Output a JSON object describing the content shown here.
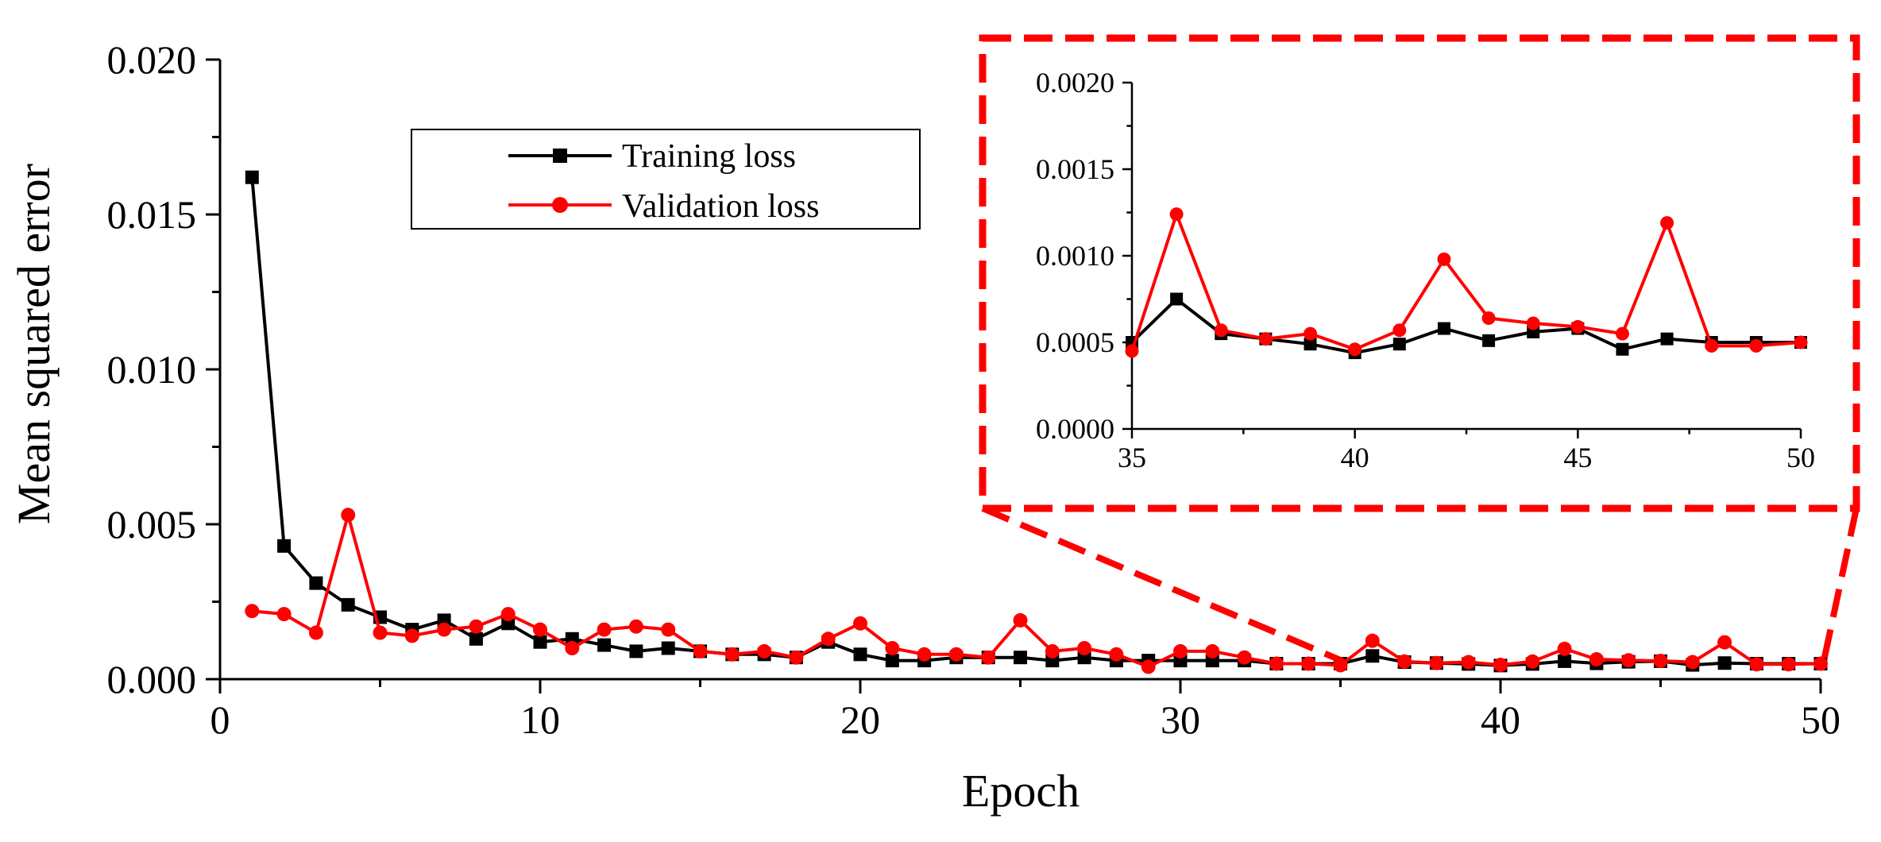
{
  "colors": {
    "training": "#000000",
    "validation": "#ff0000",
    "axis": "#000000",
    "zoom_box": "#ff0000"
  },
  "chart_data": [
    {
      "id": "main",
      "type": "line",
      "title": "",
      "xlabel": "Epoch",
      "ylabel": "Mean squared error",
      "xlim": [
        0,
        50
      ],
      "ylim": [
        0.0,
        0.02
      ],
      "xticks": [
        0,
        10,
        20,
        30,
        40,
        50
      ],
      "xtick_labels": [
        "0",
        "10",
        "20",
        "30",
        "40",
        "50"
      ],
      "yticks": [
        0.0,
        0.005,
        0.01,
        0.015,
        0.02
      ],
      "ytick_labels": [
        "0.000",
        "0.005",
        "0.010",
        "0.015",
        "0.020"
      ],
      "legend": "upper-center",
      "x": [
        1,
        2,
        3,
        4,
        5,
        6,
        7,
        8,
        9,
        10,
        11,
        12,
        13,
        14,
        15,
        16,
        17,
        18,
        19,
        20,
        21,
        22,
        23,
        24,
        25,
        26,
        27,
        28,
        29,
        30,
        31,
        32,
        33,
        34,
        35,
        36,
        37,
        38,
        39,
        40,
        41,
        42,
        43,
        44,
        45,
        46,
        47,
        48,
        49,
        50
      ],
      "series": [
        {
          "name": "Training loss",
          "marker": "square",
          "color": "#000000",
          "values": [
            0.0162,
            0.0043,
            0.0031,
            0.0024,
            0.002,
            0.0016,
            0.0019,
            0.0013,
            0.0018,
            0.0012,
            0.0013,
            0.0011,
            0.0009,
            0.001,
            0.0009,
            0.0008,
            0.0008,
            0.0007,
            0.0012,
            0.0008,
            0.0006,
            0.0006,
            0.0007,
            0.0007,
            0.0007,
            0.0006,
            0.0007,
            0.0006,
            0.0006,
            0.0006,
            0.0006,
            0.0006,
            0.0005,
            0.0005,
            0.0005,
            0.00075,
            0.00055,
            0.00052,
            0.00049,
            0.00044,
            0.00049,
            0.00058,
            0.00051,
            0.00056,
            0.00058,
            0.00046,
            0.00052,
            0.0005,
            0.0005,
            0.0005
          ]
        },
        {
          "name": "Validation loss",
          "marker": "circle",
          "color": "#ff0000",
          "values": [
            0.0022,
            0.0021,
            0.0015,
            0.0053,
            0.0015,
            0.0014,
            0.0016,
            0.0017,
            0.0021,
            0.0016,
            0.001,
            0.0016,
            0.0017,
            0.0016,
            0.0009,
            0.0008,
            0.0009,
            0.0007,
            0.0013,
            0.0018,
            0.001,
            0.0008,
            0.0008,
            0.0007,
            0.0019,
            0.0009,
            0.001,
            0.0008,
            0.0004,
            0.0009,
            0.0009,
            0.0007,
            0.0005,
            0.0005,
            0.00045,
            0.00124,
            0.00057,
            0.00052,
            0.00055,
            0.00046,
            0.00057,
            0.00098,
            0.00064,
            0.00061,
            0.00059,
            0.00055,
            0.00119,
            0.00048,
            0.00048,
            0.0005
          ]
        }
      ]
    },
    {
      "id": "inset",
      "type": "line",
      "title": "",
      "xlabel": "",
      "ylabel": "",
      "xlim": [
        35,
        50
      ],
      "ylim": [
        0.0,
        0.002
      ],
      "xticks": [
        35,
        40,
        45,
        50
      ],
      "xtick_labels": [
        "35",
        "40",
        "45",
        "50"
      ],
      "yticks": [
        0.0,
        0.0005,
        0.001,
        0.0015,
        0.002
      ],
      "ytick_labels": [
        "0.0000",
        "0.0005",
        "0.0010",
        "0.0015",
        "0.0020"
      ],
      "x": [
        35,
        36,
        37,
        38,
        39,
        40,
        41,
        42,
        43,
        44,
        45,
        46,
        47,
        48,
        49,
        50
      ],
      "series": [
        {
          "name": "Training loss",
          "marker": "square",
          "color": "#000000",
          "values": [
            0.0005,
            0.00075,
            0.00055,
            0.00052,
            0.00049,
            0.00044,
            0.00049,
            0.00058,
            0.00051,
            0.00056,
            0.00058,
            0.00046,
            0.00052,
            0.0005,
            0.0005,
            0.0005
          ]
        },
        {
          "name": "Validation loss",
          "marker": "circle",
          "color": "#ff0000",
          "values": [
            0.00045,
            0.00124,
            0.00057,
            0.00052,
            0.00055,
            0.00046,
            0.00057,
            0.00098,
            0.00064,
            0.00061,
            0.00059,
            0.00055,
            0.00119,
            0.00048,
            0.00048,
            0.0005
          ]
        }
      ]
    }
  ]
}
